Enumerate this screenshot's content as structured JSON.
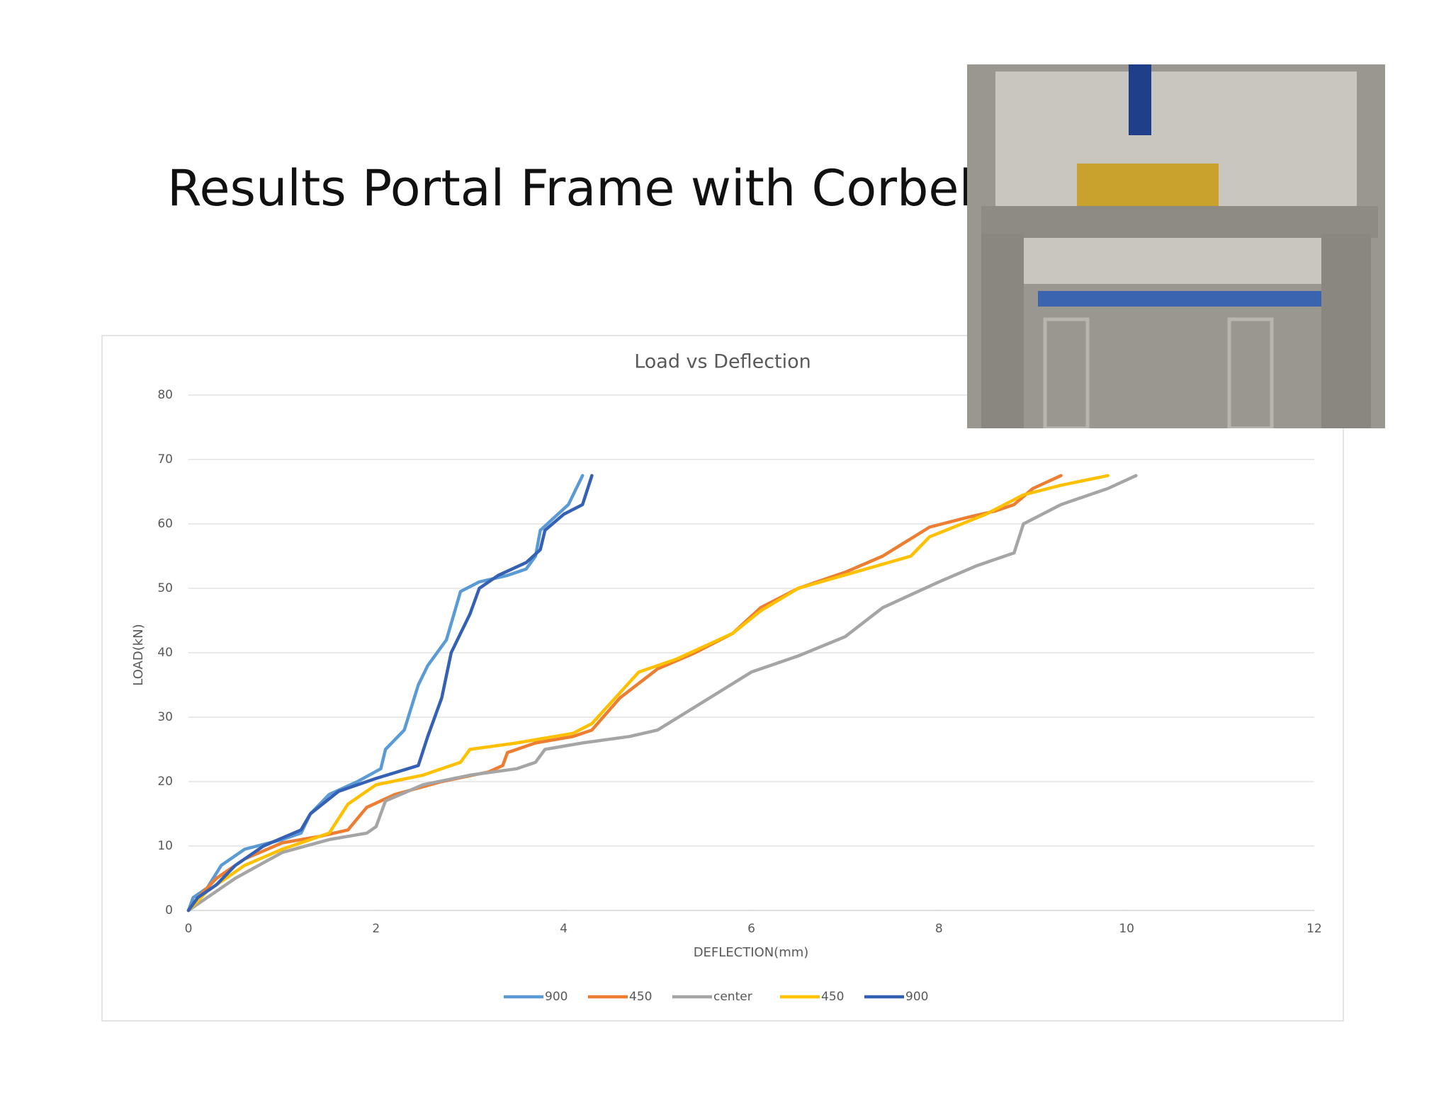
{
  "header": {
    "title": "Results Portal Frame with Corbel"
  },
  "chart_data": {
    "type": "line",
    "title": "Load vs Deflection",
    "x_label": "DEFLECTION(mm)",
    "y_label": "LOAD(kN)",
    "xlim": [
      0,
      12
    ],
    "xticks": [
      0,
      2,
      4,
      6,
      8,
      10,
      12
    ],
    "ylim": [
      0,
      80
    ],
    "yticks": [
      0,
      10,
      20,
      30,
      40,
      50,
      60,
      70,
      80
    ],
    "grid": true,
    "legend": "bottom",
    "series": [
      {
        "name": "900",
        "color": "#5b9bd5",
        "x": [
          0,
          0.05,
          0.2,
          0.35,
          0.6,
          1,
          1.2,
          1.3,
          1.5,
          1.8,
          2.05,
          2.1,
          2.3,
          2.45,
          2.55,
          2.75,
          2.9,
          3.1,
          3.4,
          3.6,
          3.7,
          3.75,
          3.9,
          4.05,
          4.2
        ],
        "values": [
          0,
          2,
          3.5,
          7,
          9.5,
          11,
          12,
          15,
          18,
          20,
          22,
          25,
          28,
          35,
          38,
          42,
          49.5,
          51,
          52,
          53,
          55,
          59,
          61,
          63,
          67.5
        ]
      },
      {
        "name": "450",
        "color": "#ed7d31",
        "x": [
          0,
          0.1,
          0.3,
          0.6,
          1,
          1.4,
          1.7,
          1.9,
          2.2,
          2.7,
          3.2,
          3.35,
          3.4,
          3.7,
          4.1,
          4.3,
          4.6,
          5,
          5.4,
          5.8,
          6.1,
          6.5,
          7,
          7.4,
          7.9,
          8.3,
          8.6,
          8.8,
          9,
          9.3
        ],
        "values": [
          0,
          2,
          5,
          8,
          10.5,
          11.5,
          12.5,
          16,
          18,
          20,
          21.5,
          22.5,
          24.5,
          26,
          27,
          28,
          33,
          37.5,
          40,
          43,
          47,
          50,
          52.5,
          55,
          59.5,
          61,
          62,
          63,
          65.5,
          67.5
        ]
      },
      {
        "name": "center",
        "color": "#a5a5a5",
        "x": [
          0,
          0.2,
          0.5,
          1,
          1.5,
          1.9,
          2,
          2.1,
          2.5,
          3,
          3.5,
          3.7,
          3.8,
          4.2,
          4.7,
          5,
          5.5,
          6,
          6.5,
          7,
          7.4,
          8,
          8.4,
          8.8,
          8.9,
          9.3,
          9.8,
          10.1
        ],
        "values": [
          0,
          2,
          5,
          9,
          11,
          12,
          13,
          17,
          19.5,
          21,
          22,
          23,
          25,
          26,
          27,
          28,
          32.5,
          37,
          39.5,
          42.5,
          47,
          51,
          53.5,
          55.5,
          60,
          63,
          65.5,
          67.5
        ]
      },
      {
        "name": "450",
        "color": "#ffc000",
        "x": [
          0,
          0.2,
          0.6,
          1,
          1.2,
          1.5,
          1.7,
          2,
          2.5,
          2.9,
          3,
          3.5,
          4.1,
          4.3,
          4.8,
          5.2,
          5.8,
          6.1,
          6.5,
          7.1,
          7.7,
          7.9,
          8.5,
          8.9,
          9.3,
          9.8
        ],
        "values": [
          0,
          3,
          7,
          9.5,
          10.5,
          12,
          16.5,
          19.5,
          21,
          23,
          25,
          26,
          27.5,
          29,
          37,
          39,
          43,
          46.5,
          50,
          52.5,
          55,
          58,
          61.5,
          64.5,
          66,
          67.5
        ]
      },
      {
        "name": "900",
        "color": "#3561b5",
        "x": [
          0,
          0.1,
          0.3,
          0.5,
          0.8,
          1.2,
          1.3,
          1.6,
          2,
          2.45,
          2.55,
          2.7,
          2.8,
          2.9,
          3,
          3.1,
          3.3,
          3.6,
          3.75,
          3.8,
          4,
          4.2,
          4.3
        ],
        "values": [
          0,
          2,
          4,
          7,
          10,
          12.5,
          15,
          18.5,
          20.5,
          22.5,
          27,
          33,
          40,
          43,
          46,
          50,
          52,
          54,
          56,
          59,
          61.5,
          63,
          67.5
        ]
      }
    ]
  }
}
